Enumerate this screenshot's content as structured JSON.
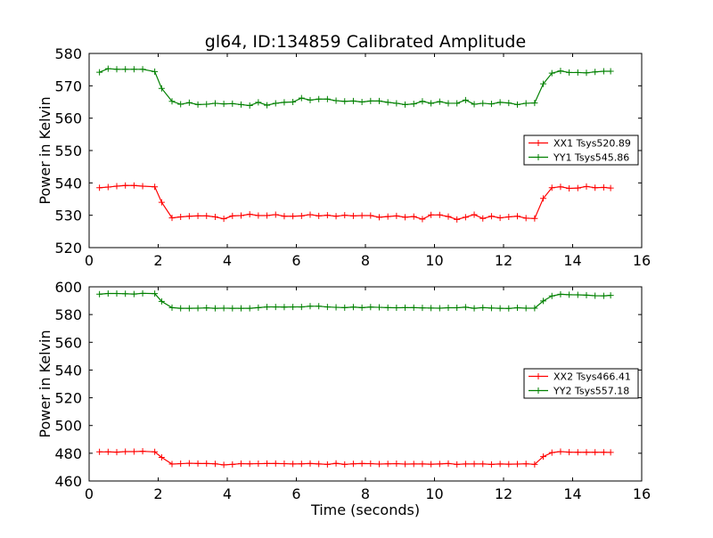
{
  "title": "gl64, ID:134859 Calibrated Amplitude",
  "chart_data": [
    {
      "type": "line",
      "title": "gl64, ID:134859 Calibrated Amplitude",
      "xlabel": "",
      "ylabel": "Power in Kelvin",
      "xlim": [
        0,
        16
      ],
      "ylim": [
        520,
        580
      ],
      "xticks": [
        "0",
        "2",
        "4",
        "6",
        "8",
        "10",
        "12",
        "14",
        "16"
      ],
      "yticks": [
        "520",
        "530",
        "540",
        "550",
        "560",
        "570",
        "580"
      ],
      "legend": "center-right",
      "grid": false,
      "x": [
        0.3,
        0.55,
        0.8,
        1.05,
        1.3,
        1.55,
        1.9,
        2.1,
        2.4,
        2.65,
        2.9,
        3.15,
        3.4,
        3.65,
        3.9,
        4.15,
        4.4,
        4.65,
        4.9,
        5.15,
        5.4,
        5.65,
        5.9,
        6.15,
        6.4,
        6.65,
        6.9,
        7.15,
        7.4,
        7.65,
        7.9,
        8.15,
        8.4,
        8.65,
        8.9,
        9.15,
        9.4,
        9.65,
        9.9,
        10.15,
        10.4,
        10.65,
        10.9,
        11.15,
        11.4,
        11.65,
        11.9,
        12.15,
        12.4,
        12.65,
        12.9,
        13.15,
        13.4,
        13.65,
        13.9,
        14.15,
        14.4,
        14.65,
        14.9,
        15.1
      ],
      "series": [
        {
          "name": "XX1 Tsys520.89",
          "color": "#ff0000",
          "values": [
            538.5,
            538.7,
            539.0,
            539.2,
            539.2,
            539.0,
            538.8,
            534.0,
            529.2,
            529.5,
            529.7,
            529.8,
            529.8,
            529.5,
            528.9,
            529.8,
            529.9,
            530.3,
            529.9,
            529.9,
            530.2,
            529.7,
            529.7,
            529.8,
            530.2,
            529.8,
            530.0,
            529.7,
            530.0,
            529.8,
            529.9,
            529.9,
            529.4,
            529.6,
            529.8,
            529.4,
            529.6,
            528.8,
            530.1,
            530.1,
            529.6,
            528.7,
            529.4,
            530.2,
            529.0,
            529.7,
            529.2,
            529.5,
            529.7,
            529.1,
            529.0,
            535.2,
            538.5,
            538.8,
            538.3,
            538.4,
            538.9,
            538.5,
            538.6,
            538.4
          ]
        },
        {
          "name": "YY1 Tsys545.86",
          "color": "#008000",
          "values": [
            574.2,
            575.3,
            575.1,
            575.1,
            575.1,
            575.1,
            574.4,
            569.2,
            565.2,
            564.3,
            564.8,
            564.2,
            564.3,
            564.6,
            564.4,
            564.5,
            564.2,
            563.9,
            564.9,
            564.0,
            564.6,
            564.9,
            565.0,
            566.2,
            565.6,
            565.9,
            565.9,
            565.4,
            565.2,
            565.3,
            565.0,
            565.3,
            565.3,
            564.9,
            564.6,
            564.2,
            564.4,
            565.2,
            564.6,
            565.1,
            564.6,
            564.6,
            565.6,
            564.3,
            564.6,
            564.4,
            564.9,
            564.7,
            564.2,
            564.6,
            564.7,
            570.6,
            573.9,
            574.6,
            574.1,
            574.1,
            574.0,
            574.3,
            574.5,
            574.5
          ]
        }
      ]
    },
    {
      "type": "line",
      "title": "",
      "xlabel": "Time (seconds)",
      "ylabel": "Power in Kelvin",
      "xlim": [
        0,
        16
      ],
      "ylim": [
        460,
        600
      ],
      "xticks": [
        "0",
        "2",
        "4",
        "6",
        "8",
        "10",
        "12",
        "14",
        "16"
      ],
      "yticks": [
        "460",
        "480",
        "500",
        "520",
        "540",
        "560",
        "580",
        "600"
      ],
      "legend": "center-right",
      "grid": false,
      "x": [
        0.3,
        0.55,
        0.8,
        1.05,
        1.3,
        1.55,
        1.9,
        2.1,
        2.4,
        2.65,
        2.9,
        3.15,
        3.4,
        3.65,
        3.9,
        4.15,
        4.4,
        4.65,
        4.9,
        5.15,
        5.4,
        5.65,
        5.9,
        6.15,
        6.4,
        6.65,
        6.9,
        7.15,
        7.4,
        7.65,
        7.9,
        8.15,
        8.4,
        8.65,
        8.9,
        9.15,
        9.4,
        9.65,
        9.9,
        10.15,
        10.4,
        10.65,
        10.9,
        11.15,
        11.4,
        11.65,
        11.9,
        12.15,
        12.4,
        12.65,
        12.9,
        13.15,
        13.4,
        13.65,
        13.9,
        14.15,
        14.4,
        14.65,
        14.9,
        15.1
      ],
      "series": [
        {
          "name": "XX2 Tsys466.41",
          "color": "#ff0000",
          "values": [
            481.0,
            481.0,
            480.8,
            481.2,
            481.2,
            481.4,
            481.0,
            477.0,
            472.2,
            472.5,
            472.8,
            472.6,
            472.6,
            472.4,
            471.6,
            472.0,
            472.5,
            472.4,
            472.5,
            472.6,
            472.6,
            472.5,
            472.3,
            472.4,
            472.6,
            472.3,
            472.0,
            472.7,
            472.0,
            472.4,
            472.6,
            472.5,
            472.2,
            472.4,
            472.5,
            472.2,
            472.3,
            472.3,
            472.1,
            472.3,
            472.6,
            472.0,
            472.3,
            472.3,
            472.3,
            472.0,
            472.3,
            472.1,
            472.2,
            472.4,
            472.0,
            477.6,
            480.5,
            481.2,
            480.8,
            480.7,
            480.7,
            480.7,
            480.7,
            480.6
          ]
        },
        {
          "name": "YY2 Tsys557.18",
          "color": "#008000",
          "values": [
            594.7,
            595.2,
            595.2,
            595.0,
            594.8,
            595.3,
            595.1,
            589.5,
            585.0,
            584.5,
            584.5,
            584.6,
            584.8,
            584.5,
            584.6,
            584.5,
            584.5,
            584.5,
            585.0,
            585.5,
            585.5,
            585.4,
            585.5,
            585.5,
            586.0,
            586.0,
            585.5,
            585.2,
            585.0,
            585.4,
            585.0,
            585.4,
            585.2,
            585.0,
            584.9,
            585.0,
            585.0,
            584.8,
            584.7,
            584.6,
            584.9,
            584.9,
            585.3,
            584.5,
            585.0,
            584.7,
            584.5,
            584.4,
            584.9,
            584.6,
            584.6,
            589.8,
            593.4,
            594.6,
            594.3,
            594.2,
            594.0,
            593.6,
            593.5,
            593.8
          ]
        }
      ]
    }
  ]
}
